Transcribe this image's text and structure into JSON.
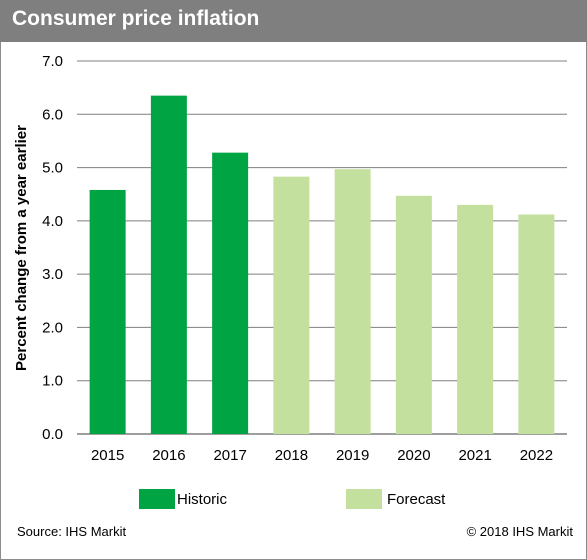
{
  "title": "Consumer price inflation",
  "source": "Source: IHS Markit",
  "copyright": "© 2018 IHS Markit",
  "colors": {
    "historic": "#00a443",
    "forecast": "#c4e09e",
    "title_bar": "#7f7f7f",
    "grid": "#7f7f7f"
  },
  "legend": [
    {
      "label": "Historic",
      "color": "#00a443"
    },
    {
      "label": "Forecast",
      "color": "#c4e09e"
    }
  ],
  "chart_data": {
    "type": "bar",
    "title": "Consumer price inflation",
    "xlabel": "",
    "ylabel": "Percent change from a year earlier",
    "ylim": [
      0,
      7
    ],
    "yticks": [
      "0.0",
      "1.0",
      "2.0",
      "3.0",
      "4.0",
      "5.0",
      "6.0",
      "7.0"
    ],
    "grid": true,
    "legend_position": "bottom",
    "categories": [
      "2015",
      "2016",
      "2017",
      "2018",
      "2019",
      "2020",
      "2021",
      "2022"
    ],
    "values": [
      4.58,
      6.35,
      5.28,
      4.83,
      4.97,
      4.47,
      4.3,
      4.12
    ],
    "series_type": [
      "Historic",
      "Historic",
      "Historic",
      "Forecast",
      "Forecast",
      "Forecast",
      "Forecast",
      "Forecast"
    ]
  }
}
